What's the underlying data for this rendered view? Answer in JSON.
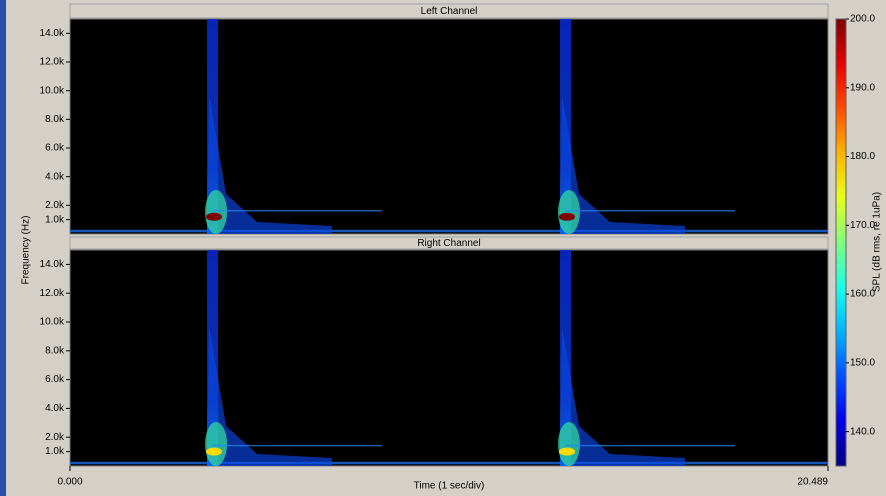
{
  "chart_data": {
    "type": "spectrogram",
    "x_label": "Time (1 sec/div)",
    "y_label": "Frequency (Hz)",
    "colorbar_label": "SPL (dB rms, re 1uPa)",
    "colormap": "jet",
    "xlim": [
      0,
      20.489
    ],
    "xticks": [
      {
        "value": 0,
        "label": "0.000"
      },
      {
        "value": 20.489,
        "label": "20.489"
      }
    ],
    "ylim": [
      0,
      15000
    ],
    "yticks": [
      {
        "value": 1000,
        "label": "1.0k"
      },
      {
        "value": 2000,
        "label": "2.0k"
      },
      {
        "value": 4000,
        "label": "4.0k"
      },
      {
        "value": 6000,
        "label": "6.0k"
      },
      {
        "value": 8000,
        "label": "8.0k"
      },
      {
        "value": 10000,
        "label": "10.0k"
      },
      {
        "value": 12000,
        "label": "12.0k"
      },
      {
        "value": 14000,
        "label": "14.0k"
      }
    ],
    "zlim": [
      135,
      200
    ],
    "zticks": [
      {
        "value": 140,
        "label": "140.0"
      },
      {
        "value": 150,
        "label": "150.0"
      },
      {
        "value": 160,
        "label": "160.0"
      },
      {
        "value": 170,
        "label": "170.0"
      },
      {
        "value": 180,
        "label": "180.0"
      },
      {
        "value": 190,
        "label": "190.0"
      },
      {
        "value": 200,
        "label": "200.0"
      }
    ],
    "panels": [
      {
        "title": "Left Channel",
        "events": [
          3.84,
          13.38
        ],
        "peak_freq": 1200,
        "peak_spl": 200
      },
      {
        "title": "Right Channel",
        "events": [
          3.84,
          13.38
        ],
        "peak_freq": 1000,
        "peak_spl": 178
      }
    ]
  }
}
